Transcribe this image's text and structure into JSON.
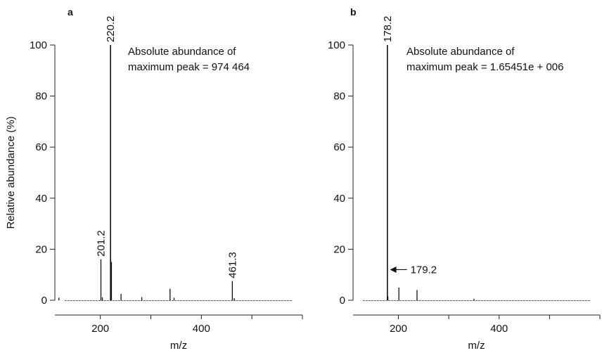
{
  "chart_data": [
    {
      "panel_label": "a",
      "type": "bar",
      "xlabel": "m/z",
      "ylabel": "Relative abundance (%)",
      "xlim": [
        110,
        600
      ],
      "ylim": [
        0,
        100
      ],
      "xticks": [
        200,
        400
      ],
      "yticks": [
        0,
        20,
        40,
        60,
        80,
        100
      ],
      "annotation": [
        "Absolute abundance of",
        "maximum peak = 974 464"
      ],
      "labeled_peaks": [
        {
          "label": "220.2",
          "x": 220.2,
          "y": 100
        },
        {
          "label": "201.2",
          "x": 201.2,
          "y": 16
        },
        {
          "label": "461.3",
          "x": 461.3,
          "y": 7.5
        }
      ],
      "peaks": [
        {
          "x": 118,
          "y": 1
        },
        {
          "x": 201.2,
          "y": 16
        },
        {
          "x": 204,
          "y": 1.2
        },
        {
          "x": 220.2,
          "y": 100
        },
        {
          "x": 222,
          "y": 15
        },
        {
          "x": 241,
          "y": 2.5
        },
        {
          "x": 282,
          "y": 1.2
        },
        {
          "x": 338,
          "y": 4.5
        },
        {
          "x": 346,
          "y": 1
        },
        {
          "x": 461.3,
          "y": 7.5
        },
        {
          "x": 465,
          "y": 0.8
        }
      ]
    },
    {
      "panel_label": "b",
      "type": "bar",
      "xlabel": "m/z",
      "ylabel": "",
      "xlim": [
        110,
        600
      ],
      "ylim": [
        0,
        100
      ],
      "xticks": [
        200,
        400
      ],
      "yticks": [
        0,
        20,
        40,
        60,
        80,
        100
      ],
      "annotation": [
        "Absolute abundance of",
        "maximum peak = 1.65451e + 006"
      ],
      "labeled_peaks": [
        {
          "label": "178.2",
          "x": 178.2,
          "y": 100
        }
      ],
      "arrow_label": {
        "label": "179.2",
        "x": 179.2,
        "y": 1.5
      },
      "peaks": [
        {
          "x": 178.2,
          "y": 100
        },
        {
          "x": 179.2,
          "y": 1.5
        },
        {
          "x": 201,
          "y": 5
        },
        {
          "x": 237,
          "y": 4
        },
        {
          "x": 350,
          "y": 0.6
        }
      ]
    }
  ]
}
